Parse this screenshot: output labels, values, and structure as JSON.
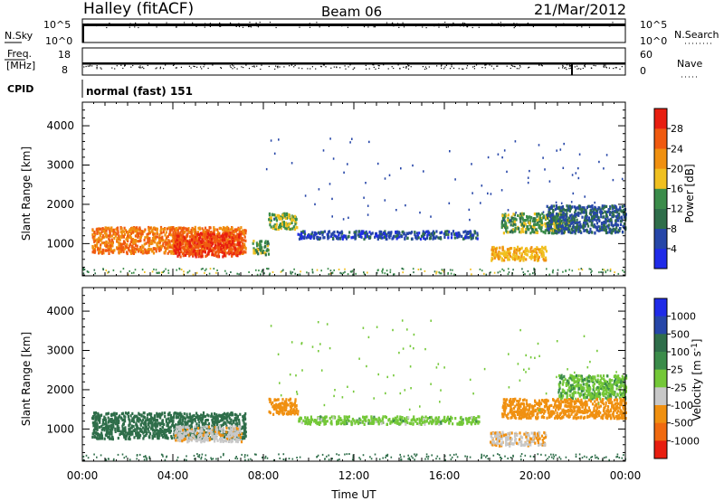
{
  "header": {
    "site": "Halley (fitACF)",
    "beam": "Beam 06",
    "date": "21/Mar/2012"
  },
  "strips": {
    "nsky_label": "N.Sky",
    "nsky_ticks": [
      "10^5",
      "10^0"
    ],
    "nsearch_label": "N.Search",
    "nsearch_ticks": [
      "10^5",
      "10^0"
    ],
    "freq_label_1": "Freq.",
    "freq_label_2": "[MHz]",
    "freq_ticks": [
      "18",
      "8"
    ],
    "nave_label": "Nave",
    "nave_ticks": [
      "60",
      "0"
    ],
    "cpid_label": "CPID",
    "cpid_value": "normal (fast) 151"
  },
  "axes": {
    "ylabel": "Slant Range [km]",
    "xlabel": "Time UT"
  },
  "colors": {
    "power": [
      "#1f2be8",
      "#2646a8",
      "#2f6e4a",
      "#3b8c4a",
      "#f0c020",
      "#f09010",
      "#f05a10",
      "#e81e10"
    ],
    "velocity": [
      "#1f2be8",
      "#2646a8",
      "#2f6e4a",
      "#3b8c4a",
      "#74c838",
      "#c8c8c8",
      "#f09010",
      "#f06a10",
      "#e81e10"
    ]
  },
  "chart_data": [
    {
      "type": "heatmap",
      "panel": "power",
      "x_range": [
        "00:00",
        "00:00"
      ],
      "x_ticks": [
        "00:00",
        "04:00",
        "08:00",
        "12:00",
        "16:00",
        "20:00",
        "00:00"
      ],
      "ylim": [
        180,
        4600
      ],
      "y_ticks": [
        1000,
        2000,
        3000,
        4000
      ],
      "colorbar_label": "Power [dB]",
      "colorbar_ticks": [
        4,
        8,
        12,
        16,
        20,
        24,
        28
      ],
      "colorbar_range": [
        0,
        32
      ],
      "regions": [
        {
          "t0": 0.4,
          "t1": 7.2,
          "r0": 780,
          "r1": 1450,
          "power": 24
        },
        {
          "t0": 4.0,
          "t1": 7.0,
          "r0": 700,
          "r1": 1300,
          "power": 28
        },
        {
          "t0": 8.2,
          "t1": 9.5,
          "r0": 1400,
          "r1": 1800,
          "power": 16
        },
        {
          "t0": 7.5,
          "t1": 8.2,
          "r0": 750,
          "r1": 1100,
          "power": 14
        },
        {
          "t0": 9.5,
          "t1": 17.5,
          "r0": 1150,
          "r1": 1350,
          "power": 6
        },
        {
          "t0": 18.0,
          "t1": 20.5,
          "r0": 600,
          "r1": 950,
          "power": 20
        },
        {
          "t0": 18.5,
          "t1": 21.5,
          "r0": 1300,
          "r1": 1800,
          "power": 14
        },
        {
          "t0": 20.5,
          "t1": 24.0,
          "r0": 1300,
          "r1": 2000,
          "power": 8
        }
      ]
    },
    {
      "type": "heatmap",
      "panel": "velocity",
      "x_range": [
        "00:00",
        "00:00"
      ],
      "x_ticks": [
        "00:00",
        "04:00",
        "08:00",
        "12:00",
        "16:00",
        "20:00",
        "00:00"
      ],
      "ylim": [
        180,
        4600
      ],
      "y_ticks": [
        1000,
        2000,
        3000,
        4000
      ],
      "colorbar_label": "Velocity [m s^-1]",
      "colorbar_ticks": [
        "1000",
        "500",
        "100",
        "25",
        "-25",
        "-100",
        "-500",
        "-1000"
      ],
      "regions": [
        {
          "t0": 0.4,
          "t1": 7.2,
          "r0": 780,
          "r1": 1450,
          "velocity": 150
        },
        {
          "t0": 4.0,
          "t1": 7.0,
          "r0": 700,
          "r1": 1100,
          "velocity": -80
        },
        {
          "t0": 8.2,
          "t1": 9.5,
          "r0": 1400,
          "r1": 1800,
          "velocity": -150
        },
        {
          "t0": 9.5,
          "t1": 17.5,
          "r0": 1150,
          "r1": 1350,
          "velocity": 0
        },
        {
          "t0": 18.0,
          "t1": 20.5,
          "r0": 600,
          "r1": 950,
          "velocity": -90
        },
        {
          "t0": 18.5,
          "t1": 21.5,
          "r0": 1300,
          "r1": 1800,
          "velocity": -300
        },
        {
          "t0": 21.0,
          "t1": 24.0,
          "r0": 1800,
          "r1": 2400,
          "velocity": 10
        },
        {
          "t0": 21.5,
          "t1": 24.0,
          "r0": 1300,
          "r1": 1800,
          "velocity": -200
        }
      ]
    }
  ]
}
